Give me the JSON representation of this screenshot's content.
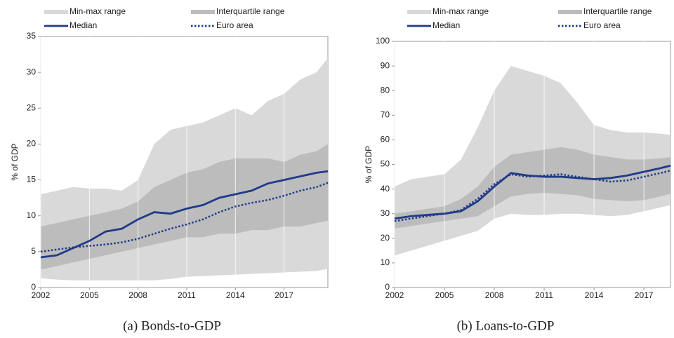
{
  "chart_data": [
    {
      "type": "band",
      "caption": "(a) Bonds-to-GDP",
      "y_label": "% of GDP",
      "x": [
        2002,
        2003,
        2004,
        2005,
        2006,
        2007,
        2008,
        2009,
        2010,
        2011,
        2012,
        2013,
        2014,
        2015,
        2016,
        2017,
        2018,
        2019,
        2019.7
      ],
      "xlim": [
        2002,
        2019.7
      ],
      "xticks": [
        2002,
        2005,
        2008,
        2011,
        2014,
        2017
      ],
      "ylim": [
        0,
        35
      ],
      "yticks": [
        0,
        5,
        10,
        15,
        20,
        25,
        30,
        35
      ],
      "grid": true,
      "series": [
        {
          "name": "Min-max range",
          "color": "#d9d9d9",
          "upper": [
            13,
            13.5,
            14,
            13.8,
            13.8,
            13.5,
            15,
            20,
            22,
            22.5,
            23,
            24,
            25,
            24,
            26,
            27,
            29,
            30,
            32
          ],
          "lower": [
            1.3,
            1.1,
            1,
            1,
            1,
            1,
            1,
            1,
            1.2,
            1.5,
            1.6,
            1.7,
            1.8,
            1.9,
            2,
            2.1,
            2.2,
            2.3,
            2.6
          ]
        },
        {
          "name": "Interquartile range",
          "color": "#bcbcbc",
          "upper": [
            8.5,
            9,
            9.5,
            10,
            10.5,
            11,
            12,
            14,
            15,
            16,
            16.5,
            17.5,
            18,
            18,
            18,
            17.5,
            18.5,
            19,
            20
          ],
          "lower": [
            2.5,
            3,
            3.5,
            4,
            4.5,
            5,
            5.5,
            6,
            6.5,
            7,
            7,
            7.5,
            7.5,
            8,
            8,
            8.5,
            8.5,
            9,
            9.3
          ]
        },
        {
          "name": "Median",
          "color": "#1f3a8a",
          "dash": false,
          "values": [
            4.2,
            4.5,
            5.5,
            6.5,
            7.8,
            8.2,
            9.5,
            10.5,
            10.3,
            11,
            11.5,
            12.5,
            13,
            13.5,
            14.5,
            15,
            15.5,
            16,
            16.2
          ]
        },
        {
          "name": "Euro area",
          "color": "#1f3a8a",
          "dash": true,
          "values": [
            5,
            5.3,
            5.6,
            5.8,
            6,
            6.3,
            6.8,
            7.5,
            8.2,
            8.8,
            9.5,
            10.5,
            11.3,
            11.8,
            12.2,
            12.8,
            13.5,
            14,
            14.6
          ]
        }
      ]
    },
    {
      "type": "band",
      "caption": "(b) Loans-to-GDP",
      "y_label": "% of GDP",
      "x": [
        2002,
        2003,
        2004,
        2005,
        2006,
        2007,
        2008,
        2009,
        2010,
        2011,
        2012,
        2013,
        2014,
        2015,
        2016,
        2017,
        2018,
        2018.6
      ],
      "xlim": [
        2002,
        2018.6
      ],
      "xticks": [
        2002,
        2005,
        2008,
        2011,
        2014,
        2017
      ],
      "ylim": [
        0,
        100
      ],
      "yticks": [
        0,
        10,
        20,
        30,
        40,
        50,
        60,
        70,
        80,
        90,
        100
      ],
      "grid": true,
      "series": [
        {
          "name": "Min-max range",
          "color": "#d9d9d9",
          "upper": [
            41,
            44,
            45,
            46,
            52,
            65,
            80,
            90,
            88,
            86,
            83,
            75,
            66,
            64,
            63,
            63,
            62.5,
            62
          ],
          "lower": [
            13,
            15,
            17,
            19,
            21,
            23,
            28,
            30,
            29.5,
            29.5,
            30,
            30,
            29.5,
            29,
            29.5,
            31,
            32.5,
            33.5
          ]
        },
        {
          "name": "Interquartile range",
          "color": "#bcbcbc",
          "upper": [
            30,
            31,
            32,
            33,
            36,
            41,
            49,
            54,
            55,
            56,
            57,
            56,
            54,
            53,
            52,
            52,
            52.5,
            53
          ],
          "lower": [
            24,
            25,
            26,
            27,
            28,
            29,
            33,
            37,
            38,
            38.5,
            38,
            37.5,
            36,
            35.5,
            35,
            35.5,
            37,
            38
          ]
        },
        {
          "name": "Median",
          "color": "#1f3a8a",
          "dash": false,
          "values": [
            28,
            29,
            29.5,
            30,
            31,
            35,
            41,
            46.5,
            45.5,
            45,
            45,
            44.5,
            44,
            44.5,
            45.5,
            47,
            48.5,
            49.5
          ]
        },
        {
          "name": "Euro area",
          "color": "#1f3a8a",
          "dash": true,
          "values": [
            27,
            28,
            29,
            30,
            31.5,
            36,
            42,
            46,
            45,
            45.5,
            46,
            45,
            44,
            43,
            43.5,
            45,
            46.5,
            47.5
          ]
        }
      ]
    }
  ]
}
